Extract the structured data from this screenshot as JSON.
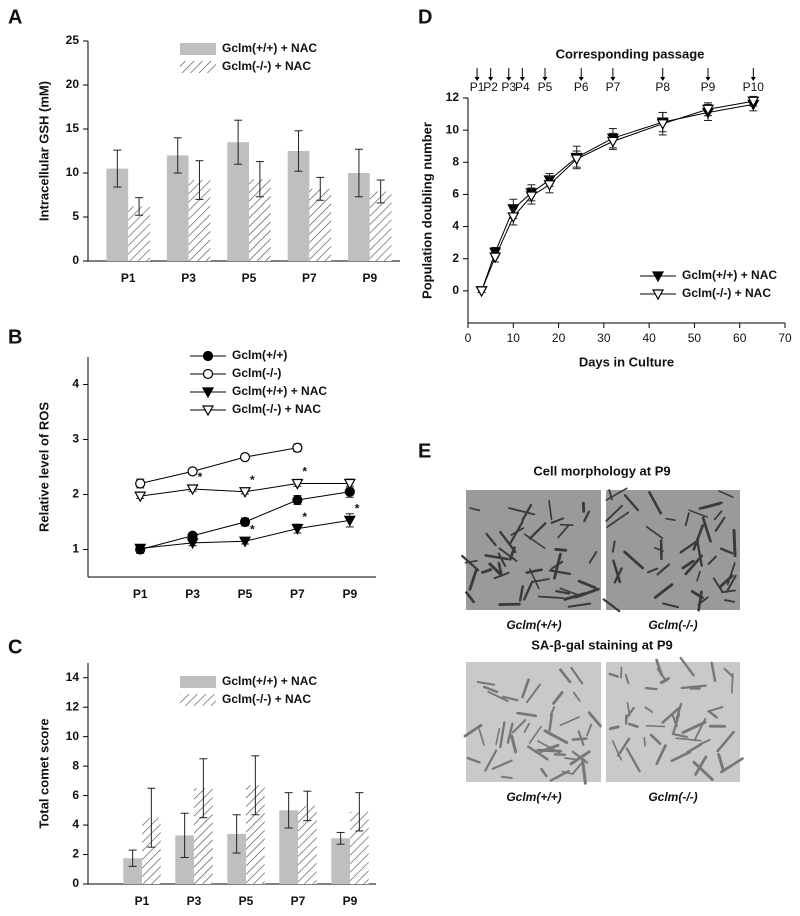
{
  "chart_data": [
    {
      "panel": "A",
      "type": "bar",
      "ylabel": "Intracellular GSH (mM)",
      "categories": [
        "P1",
        "P3",
        "P5",
        "P7",
        "P9"
      ],
      "series": [
        {
          "name": "Gclm(+/+) + NAC",
          "color": "#bfbfbf",
          "pattern": "solid",
          "values": [
            10.5,
            12,
            13.5,
            12.5,
            10
          ],
          "errors": [
            2.1,
            2,
            2.5,
            2.3,
            2.7
          ]
        },
        {
          "name": "Gclm(-/-) + NAC",
          "color": "#444444",
          "pattern": "hatch",
          "values": [
            6.2,
            9.2,
            9.3,
            8.2,
            7.9
          ],
          "errors": [
            1,
            2.2,
            2,
            1.3,
            1.3
          ]
        }
      ],
      "ylim": [
        0,
        25
      ],
      "yticks": [
        0,
        5,
        10,
        15,
        20,
        25
      ]
    },
    {
      "panel": "B",
      "type": "line",
      "ylabel": "Relative level of ROS",
      "categories": [
        "P1",
        "P3",
        "P5",
        "P7",
        "P9"
      ],
      "significance_label": "*",
      "series": [
        {
          "name": "Gclm(+/+)",
          "color": "#000000",
          "marker": "circle",
          "filled": true,
          "values": [
            1.0,
            1.25,
            1.5,
            1.9,
            2.05
          ],
          "errors": [
            0.07,
            0.05,
            0.07,
            0.08,
            0.1
          ],
          "significant": [
            false,
            false,
            false,
            false,
            false
          ]
        },
        {
          "name": "Gclm(-/-)",
          "color": "#000000",
          "marker": "circle",
          "filled": false,
          "values": [
            2.2,
            2.42,
            2.68,
            2.85,
            null
          ],
          "errors": [
            0.08,
            0.05,
            0.05,
            0.07,
            null
          ],
          "significant": [
            false,
            false,
            false,
            false,
            false
          ]
        },
        {
          "name": "Gclm(+/+) + NAC",
          "color": "#000000",
          "marker": "triangle",
          "filled": true,
          "values": [
            1.02,
            1.12,
            1.15,
            1.38,
            1.53
          ],
          "errors": [
            0.05,
            0.05,
            0.05,
            0.08,
            0.12
          ],
          "significant": [
            false,
            false,
            true,
            true,
            true
          ]
        },
        {
          "name": "Gclm(-/-) + NAC",
          "color": "#000000",
          "marker": "triangle",
          "filled": false,
          "values": [
            1.97,
            2.1,
            2.05,
            2.2,
            2.2
          ],
          "errors": [
            0.04,
            0.04,
            0.04,
            0.05,
            0.08
          ],
          "significant": [
            false,
            true,
            true,
            true,
            false
          ]
        }
      ],
      "ylim": [
        0.5,
        4.5
      ],
      "yticks": [
        1,
        2,
        3,
        4
      ]
    },
    {
      "panel": "C",
      "type": "bar",
      "ylabel": "Total comet score",
      "categories": [
        "P1",
        "P3",
        "P5",
        "P7",
        "P9"
      ],
      "series": [
        {
          "name": "Gclm(+/+) + NAC",
          "color": "#bfbfbf",
          "pattern": "solid",
          "values": [
            1.75,
            3.3,
            3.4,
            5.0,
            3.1
          ],
          "errors": [
            0.55,
            1.5,
            1.3,
            1.2,
            0.4
          ]
        },
        {
          "name": "Gclm(-/-) + NAC",
          "color": "#444444",
          "pattern": "hatch",
          "values": [
            4.5,
            6.5,
            6.7,
            5.3,
            4.9
          ],
          "errors": [
            2.0,
            2.0,
            2.0,
            1.0,
            1.3
          ]
        }
      ],
      "ylim": [
        0,
        15
      ],
      "yticks": [
        0,
        2,
        4,
        6,
        8,
        10,
        12,
        14
      ]
    },
    {
      "panel": "D",
      "type": "xyline",
      "ylabel": "Population doubling number",
      "xlabel": "Days in Culture",
      "x": [
        3,
        6,
        10,
        14,
        18,
        24,
        32,
        43,
        53,
        63
      ],
      "series": [
        {
          "name": "Gclm(+/+) + NAC",
          "color": "#000000",
          "marker": "triangle",
          "filled": true,
          "values": [
            0,
            2.4,
            5.1,
            6.1,
            6.9,
            8.3,
            9.5,
            10.5,
            11.1,
            11.6
          ],
          "errors": [
            0.1,
            0.3,
            0.6,
            0.5,
            0.4,
            0.7,
            0.6,
            0.6,
            0.5,
            0.4
          ]
        },
        {
          "name": "Gclm(-/-) + NAC",
          "color": "#000000",
          "marker": "triangle",
          "filled": false,
          "values": [
            0,
            2.1,
            4.6,
            5.9,
            6.6,
            8.2,
            9.3,
            10.4,
            11.3,
            11.8
          ],
          "errors": [
            0.1,
            0.3,
            0.5,
            0.5,
            0.5,
            0.5,
            0.5,
            0.7,
            0.4,
            0.3
          ]
        }
      ],
      "passages": {
        "title": "Corresponding passage",
        "labels": [
          "P1",
          "P2",
          "P3",
          "P4",
          "P5",
          "P6",
          "P7",
          "P8",
          "P9",
          "P10"
        ],
        "x": [
          2,
          5,
          9,
          12,
          17,
          25,
          32,
          43,
          53,
          63
        ]
      },
      "xlim": [
        0,
        70
      ],
      "xticks": [
        0,
        10,
        20,
        30,
        40,
        50,
        60,
        70
      ],
      "ylim": [
        -2,
        12
      ],
      "yticks": [
        0,
        2,
        4,
        6,
        8,
        10,
        12
      ]
    }
  ],
  "panel_e": {
    "panel": "E",
    "sections": [
      {
        "title": "Cell morphology at P9",
        "labels": [
          "Gclm(+/+)",
          "Gclm(-/-)"
        ]
      },
      {
        "title": "SA-β-gal staining at P9",
        "labels": [
          "Gclm(+/+)",
          "Gclm(-/-)"
        ]
      }
    ]
  }
}
